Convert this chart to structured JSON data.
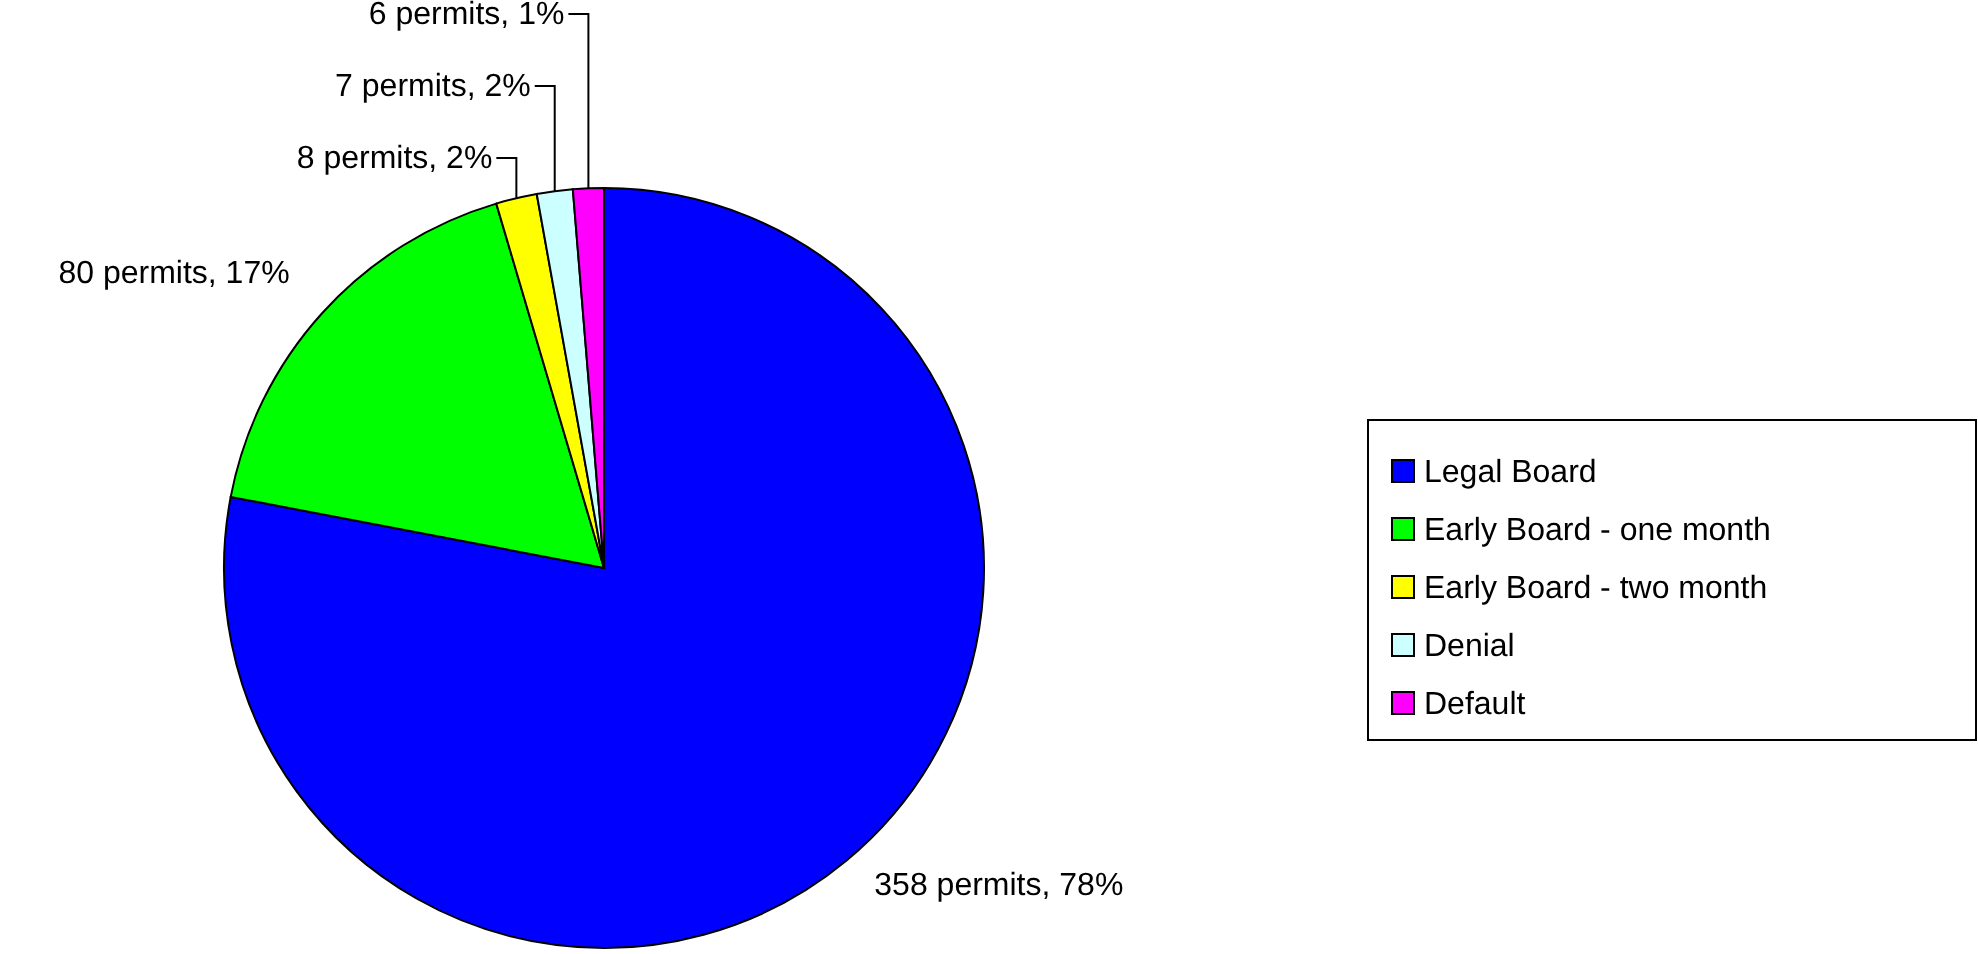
{
  "chart_data": {
    "type": "pie",
    "categories": [
      "Legal Board",
      "Early Board - one month",
      "Early Board - two month",
      "Denial",
      "Default"
    ],
    "values": [
      358,
      80,
      8,
      7,
      6
    ],
    "colors": [
      "#0000ff",
      "#00ff00",
      "#ffff00",
      "#ccffff",
      "#ff00ff"
    ],
    "value_labels": [
      "358 permits, 78%",
      "80 permits, 17%",
      "8 permits, 2%",
      "7 permits, 2%",
      "6 permits, 1%"
    ],
    "legend": "right"
  }
}
